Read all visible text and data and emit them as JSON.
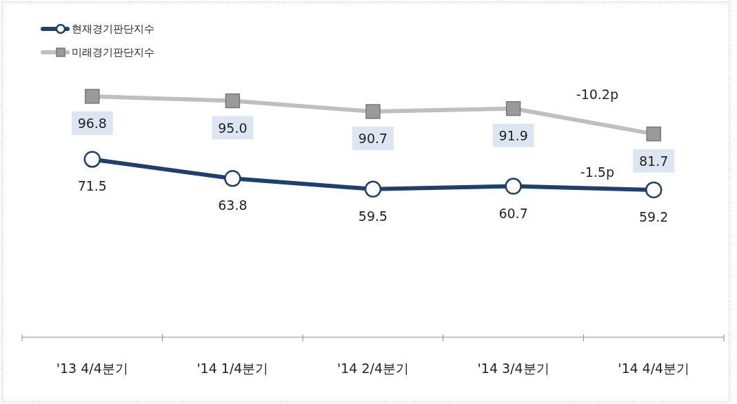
{
  "chart_data": {
    "type": "line",
    "categories": [
      "'13 4/4분기",
      "'14 1/4분기",
      "'14 2/4분기",
      "'14 3/4분기",
      "'14 4/4분기"
    ],
    "series": [
      {
        "name": "현재경기판단지수",
        "color": "#1f3f6e",
        "marker": "circle",
        "values": [
          71.5,
          63.8,
          59.5,
          60.7,
          59.2
        ],
        "value_labels": [
          "71.5",
          "63.8",
          "59.5",
          "60.7",
          "59.2"
        ]
      },
      {
        "name": "미래경기판단지수",
        "color": "#bfbfbf",
        "marker": "square",
        "values": [
          96.8,
          95.0,
          90.7,
          91.9,
          81.7
        ],
        "value_labels": [
          "96.8",
          "95.0",
          "90.7",
          "91.9",
          "81.7"
        ]
      }
    ],
    "legend": "top left",
    "grid": false,
    "annotations": [
      "-10.2p",
      "-1.5p"
    ]
  }
}
